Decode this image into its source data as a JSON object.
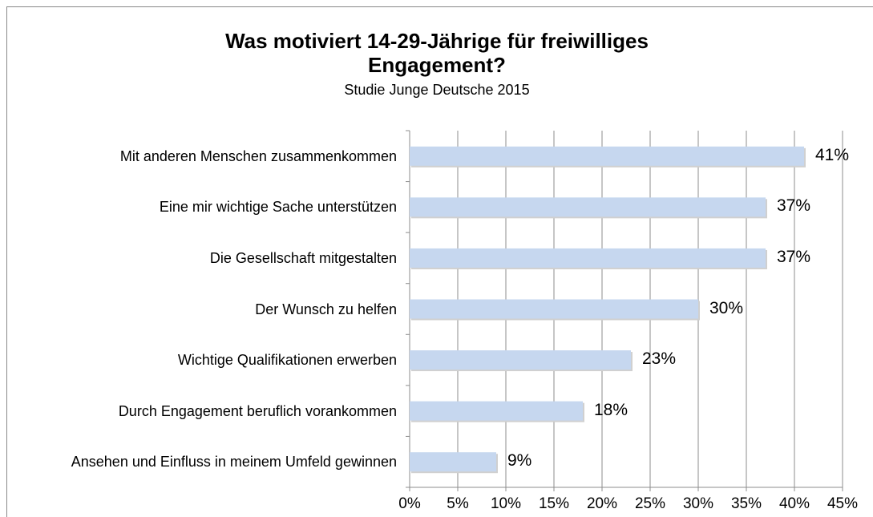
{
  "chart_data": {
    "type": "bar",
    "orientation": "horizontal",
    "title": "Was motiviert 14-29-Jährige für freiwilliges Engagement?",
    "subtitle": "Studie Junge Deutsche 2015",
    "categories": [
      "Mit anderen Menschen zusammenkommen",
      "Eine mir wichtige Sache unterstützen",
      "Die Gesellschaft mitgestalten",
      "Der Wunsch zu helfen",
      "Wichtige Qualifikationen erwerben",
      "Durch Engagement beruflich vorankommen",
      "Ansehen und Einfluss in meinem Umfeld gewinnen"
    ],
    "values": [
      41,
      37,
      37,
      30,
      23,
      18,
      9
    ],
    "value_labels": [
      "41%",
      "37%",
      "37%",
      "30%",
      "23%",
      "18%",
      "9%"
    ],
    "color": "#c6d7ef",
    "xlim": [
      0,
      45
    ],
    "xticks": [
      {
        "value": 0,
        "label": "0%"
      },
      {
        "value": 5,
        "label": "5%"
      },
      {
        "value": 10,
        "label": "10%"
      },
      {
        "value": 15,
        "label": "15%"
      },
      {
        "value": 20,
        "label": "20%"
      },
      {
        "value": 25,
        "label": "25%"
      },
      {
        "value": 30,
        "label": "30%"
      },
      {
        "value": 35,
        "label": "35%"
      },
      {
        "value": 40,
        "label": "40%"
      },
      {
        "value": 45,
        "label": "45%"
      }
    ],
    "grid": true
  }
}
